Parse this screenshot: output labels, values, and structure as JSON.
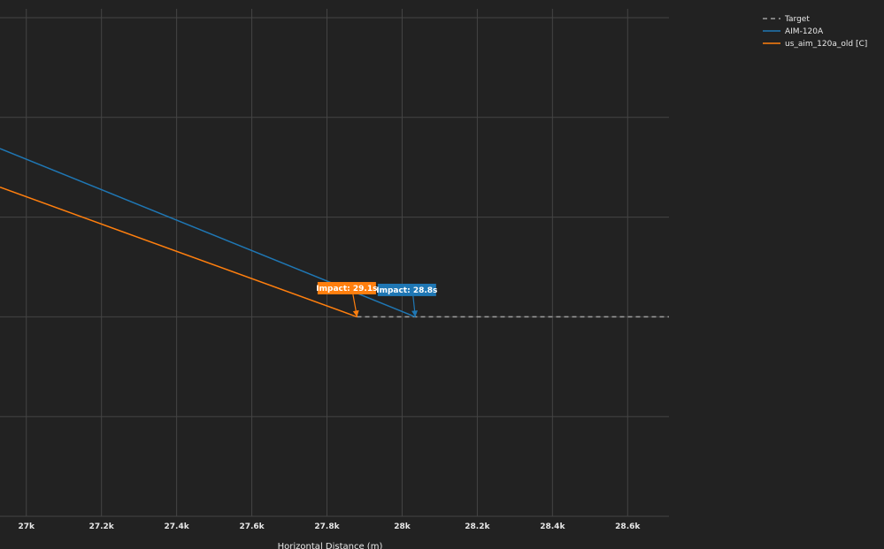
{
  "chart_data": {
    "type": "line",
    "xlabel": "Horizontal Distance (m)",
    "xlim": [
      26930,
      28710
    ],
    "ylim": [
      -10,
      10
    ],
    "x_ticks": [
      27000,
      27200,
      27400,
      27600,
      27800,
      28000,
      28200,
      28400,
      28600
    ],
    "x_tick_labels": [
      "27k",
      "27.2k",
      "27.4k",
      "27.6k",
      "27.8k",
      "28k",
      "28.2k",
      "28.4k",
      "28.6k"
    ],
    "y_gridlines": [
      10,
      6,
      2,
      -2,
      -6,
      -10
    ],
    "grid": true,
    "legend_position": "top-right",
    "series": [
      {
        "name": "Target",
        "color": "#9e9e9e",
        "dash": "dashed",
        "x": [
          27880,
          28710
        ],
        "y": [
          -2,
          -2
        ]
      },
      {
        "name": "AIM-120A",
        "color": "#1f77b4",
        "dash": "solid",
        "x": [
          26930,
          28035
        ],
        "y": [
          4.75,
          -2
        ]
      },
      {
        "name": "us_aim_120a_old [C]",
        "color": "#ff7f0e",
        "dash": "solid",
        "x": [
          26930,
          27880
        ],
        "y": [
          3.2,
          -2
        ]
      }
    ],
    "annotations": [
      {
        "text": "Impact: 28.8s",
        "x": 28035,
        "y": -2,
        "color": "#1f77b4",
        "label_x": 27935,
        "label_y": -0.92
      },
      {
        "text": "Impact: 29.1s",
        "x": 27880,
        "y": -2,
        "color": "#ff7f0e",
        "label_x": 27775,
        "label_y": -0.85
      }
    ]
  }
}
